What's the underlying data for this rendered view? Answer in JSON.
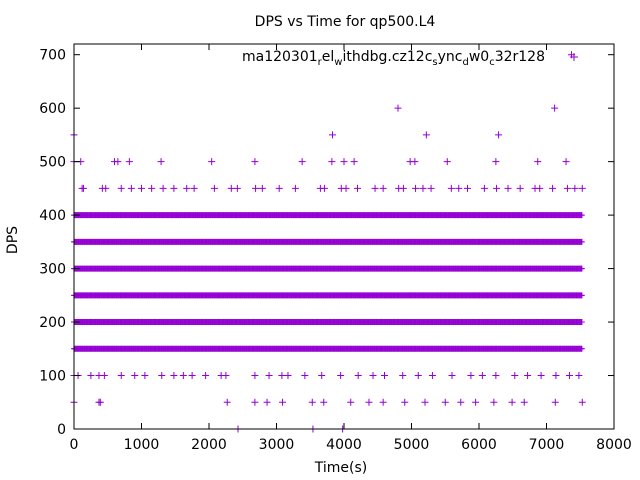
{
  "chart_data": {
    "type": "scatter",
    "title": "DPS vs Time for qp500.L4",
    "xlabel": "Time(s)",
    "ylabel": "DPS",
    "xlim": [
      0,
      8000
    ],
    "ylim": [
      0,
      720
    ],
    "xticks": [
      0,
      1000,
      2000,
      3000,
      4000,
      5000,
      6000,
      7000,
      8000
    ],
    "yticks": [
      0,
      100,
      200,
      300,
      400,
      500,
      600,
      700
    ],
    "grid": false,
    "legend_position": "top-right",
    "marker": "+",
    "series": [
      {
        "name_parts": [
          {
            "text": "ma120301",
            "sub": false
          },
          {
            "text": "r",
            "sub": true
          },
          {
            "text": "el",
            "sub": false
          },
          {
            "text": "w",
            "sub": true
          },
          {
            "text": "ithdbg.cz12c",
            "sub": false
          },
          {
            "text": "s",
            "sub": true
          },
          {
            "text": "ync",
            "sub": false
          },
          {
            "text": "d",
            "sub": true
          },
          {
            "text": "w0",
            "sub": false
          },
          {
            "text": "c",
            "sub": true
          },
          {
            "text": "32r128",
            "sub": false
          }
        ],
        "color": "#9400D3",
        "x_range": [
          0,
          7530
        ],
        "dense_levels": [
          150,
          200,
          250,
          300,
          350,
          400
        ],
        "sparse_points": [
          [
            0,
            550
          ],
          [
            0,
            500
          ],
          [
            100,
            500
          ],
          [
            120,
            450
          ],
          [
            140,
            450
          ],
          [
            600,
            500
          ],
          [
            650,
            500
          ],
          [
            820,
            500
          ],
          [
            1290,
            500
          ],
          [
            2040,
            500
          ],
          [
            2680,
            500
          ],
          [
            3380,
            500
          ],
          [
            3820,
            500
          ],
          [
            4000,
            500
          ],
          [
            4150,
            500
          ],
          [
            4980,
            500
          ],
          [
            5050,
            500
          ],
          [
            5530,
            500
          ],
          [
            6250,
            500
          ],
          [
            6870,
            500
          ],
          [
            7290,
            500
          ],
          [
            4800,
            600
          ],
          [
            7120,
            600
          ],
          [
            3830,
            550
          ],
          [
            5220,
            550
          ],
          [
            6290,
            550
          ],
          [
            7370,
            700
          ],
          [
            420,
            450
          ],
          [
            470,
            450
          ],
          [
            700,
            450
          ],
          [
            850,
            450
          ],
          [
            1000,
            450
          ],
          [
            1150,
            450
          ],
          [
            1320,
            450
          ],
          [
            1480,
            450
          ],
          [
            1670,
            450
          ],
          [
            1780,
            450
          ],
          [
            2080,
            450
          ],
          [
            2330,
            450
          ],
          [
            2420,
            450
          ],
          [
            2690,
            450
          ],
          [
            2790,
            450
          ],
          [
            3040,
            450
          ],
          [
            3280,
            450
          ],
          [
            3650,
            450
          ],
          [
            3710,
            450
          ],
          [
            3960,
            450
          ],
          [
            4030,
            450
          ],
          [
            4200,
            450
          ],
          [
            4460,
            450
          ],
          [
            4580,
            450
          ],
          [
            4810,
            450
          ],
          [
            4880,
            450
          ],
          [
            5060,
            450
          ],
          [
            5170,
            450
          ],
          [
            5290,
            450
          ],
          [
            5590,
            450
          ],
          [
            5700,
            450
          ],
          [
            5830,
            450
          ],
          [
            6080,
            450
          ],
          [
            6260,
            450
          ],
          [
            6430,
            450
          ],
          [
            6610,
            450
          ],
          [
            6830,
            450
          ],
          [
            6900,
            450
          ],
          [
            7090,
            450
          ],
          [
            7310,
            450
          ],
          [
            7420,
            450
          ],
          [
            7530,
            450
          ],
          [
            0,
            100
          ],
          [
            60,
            100
          ],
          [
            250,
            100
          ],
          [
            370,
            100
          ],
          [
            450,
            100
          ],
          [
            700,
            100
          ],
          [
            900,
            100
          ],
          [
            1050,
            100
          ],
          [
            1300,
            100
          ],
          [
            1480,
            100
          ],
          [
            1620,
            100
          ],
          [
            1750,
            100
          ],
          [
            1950,
            100
          ],
          [
            2180,
            100
          ],
          [
            2250,
            100
          ],
          [
            2680,
            100
          ],
          [
            2890,
            100
          ],
          [
            3080,
            100
          ],
          [
            3170,
            100
          ],
          [
            3420,
            100
          ],
          [
            3670,
            100
          ],
          [
            3950,
            100
          ],
          [
            4210,
            100
          ],
          [
            4430,
            100
          ],
          [
            4600,
            100
          ],
          [
            4870,
            100
          ],
          [
            5100,
            100
          ],
          [
            5310,
            100
          ],
          [
            5600,
            100
          ],
          [
            5880,
            100
          ],
          [
            6050,
            100
          ],
          [
            6250,
            100
          ],
          [
            6530,
            100
          ],
          [
            6720,
            100
          ],
          [
            6920,
            100
          ],
          [
            7140,
            100
          ],
          [
            7340,
            100
          ],
          [
            7480,
            100
          ],
          [
            0,
            50
          ],
          [
            370,
            50
          ],
          [
            390,
            50
          ],
          [
            2270,
            50
          ],
          [
            2680,
            50
          ],
          [
            2860,
            50
          ],
          [
            3090,
            50
          ],
          [
            3530,
            50
          ],
          [
            3700,
            50
          ],
          [
            4100,
            50
          ],
          [
            4370,
            50
          ],
          [
            4580,
            50
          ],
          [
            4900,
            50
          ],
          [
            5200,
            50
          ],
          [
            5500,
            50
          ],
          [
            5730,
            50
          ],
          [
            5950,
            50
          ],
          [
            6220,
            50
          ],
          [
            6490,
            50
          ],
          [
            6670,
            50
          ],
          [
            7130,
            50
          ],
          [
            7530,
            50
          ],
          [
            2430,
            0
          ],
          [
            3540,
            0
          ],
          [
            3980,
            0
          ]
        ]
      }
    ]
  }
}
